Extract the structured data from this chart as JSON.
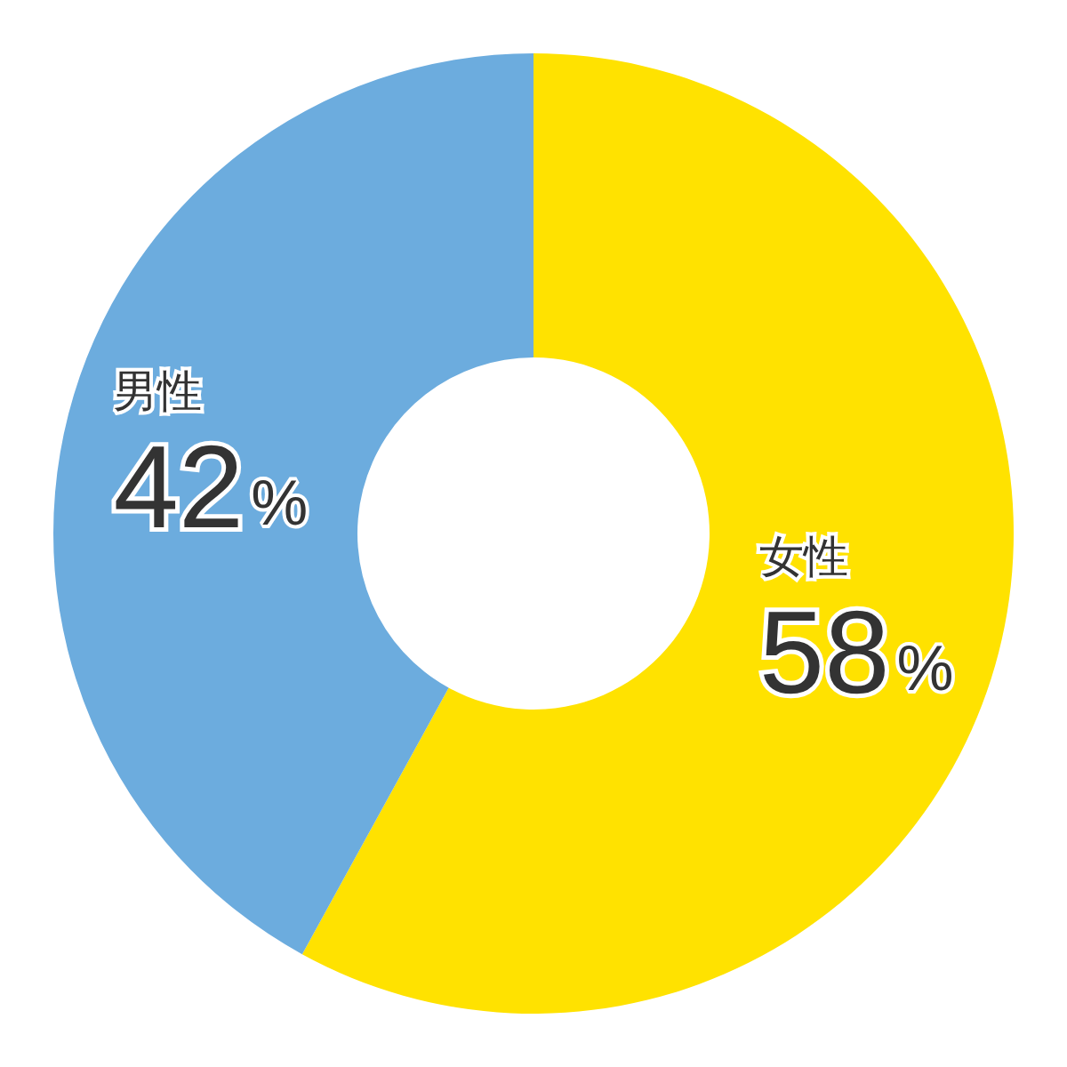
{
  "chart_data": {
    "type": "donut",
    "categories": [
      "女性",
      "男性"
    ],
    "values": [
      58,
      42
    ],
    "colors": [
      "#ffe200",
      "#6cacde"
    ],
    "value_labels": [
      "58%",
      "42%"
    ],
    "legend": false
  }
}
